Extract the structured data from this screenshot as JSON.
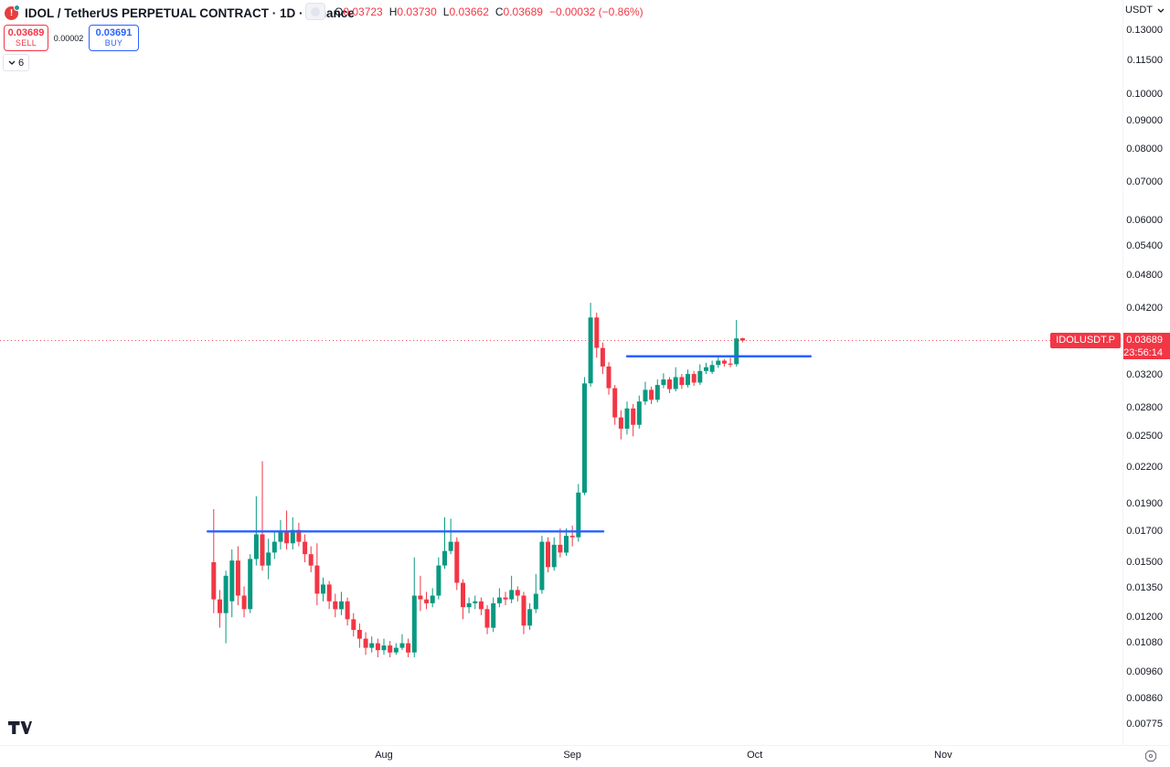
{
  "header": {
    "symbol_title": "IDOL / TetherUS PERPETUAL CONTRACT · 1D · Binance",
    "ohlc": {
      "o_label": "O",
      "o": "0.03723",
      "h_label": "H",
      "h": "0.03730",
      "l_label": "L",
      "l": "0.03662",
      "c_label": "C",
      "c": "0.03689",
      "change": "−0.00032 (−0.86%)"
    },
    "sell": {
      "price": "0.03689",
      "label": "SELL"
    },
    "spread": "0.00002",
    "buy": {
      "price": "0.03691",
      "label": "BUY"
    },
    "object_tree_count": "6"
  },
  "price_scale": {
    "currency": "USDT",
    "ticks": [
      "0.13000",
      "0.11500",
      "0.10000",
      "0.09000",
      "0.08000",
      "0.07000",
      "0.06000",
      "0.05400",
      "0.04800",
      "0.04200",
      "0.03200",
      "0.02800",
      "0.02500",
      "0.02200",
      "0.01900",
      "0.01700",
      "0.01500",
      "0.01350",
      "0.01200",
      "0.01080",
      "0.00960",
      "0.00860",
      "0.00775"
    ]
  },
  "time_axis": {
    "months": [
      {
        "label": "Aug",
        "day": 28
      },
      {
        "label": "Sep",
        "day": 59
      },
      {
        "label": "Oct",
        "day": 89
      },
      {
        "label": "Nov",
        "day": 120
      }
    ]
  },
  "price_label": {
    "symbol": "IDOLUSDT.P",
    "price": "0.03689",
    "countdown": "23:56:14"
  },
  "colors": {
    "up": "#089981",
    "down": "#f23645",
    "trendline": "#2962ff",
    "text": "#131722"
  },
  "chart_data": {
    "type": "candlestick",
    "symbol": "IDOLUSDT.P",
    "exchange": "Binance",
    "interval": "1D",
    "scale": "log",
    "current_price": 0.03689,
    "ylim": [
      0.0072,
      0.14
    ],
    "candles_format": [
      "date",
      "open",
      "high",
      "low",
      "close"
    ],
    "candles": [
      [
        "Jul 4",
        0.015,
        0.0186,
        0.0122,
        0.0129
      ],
      [
        "Jul 5",
        0.0129,
        0.0134,
        0.0115,
        0.0122
      ],
      [
        "Jul 6",
        0.0122,
        0.0145,
        0.0108,
        0.0142
      ],
      [
        "Jul 7",
        0.0128,
        0.0158,
        0.012,
        0.0151
      ],
      [
        "Jul 8",
        0.0151,
        0.016,
        0.0126,
        0.0131
      ],
      [
        "Jul 9",
        0.0131,
        0.0136,
        0.012,
        0.0124
      ],
      [
        "Jul 10",
        0.0124,
        0.0155,
        0.0122,
        0.0152
      ],
      [
        "Jul 11",
        0.0152,
        0.0196,
        0.0148,
        0.0168
      ],
      [
        "Jul 12",
        0.0168,
        0.0226,
        0.0145,
        0.0148
      ],
      [
        "Jul 13",
        0.0148,
        0.0165,
        0.014,
        0.0156
      ],
      [
        "Jul 14",
        0.0156,
        0.017,
        0.0152,
        0.0163
      ],
      [
        "Jul 15",
        0.0163,
        0.0178,
        0.0158,
        0.017
      ],
      [
        "Jul 16",
        0.017,
        0.0185,
        0.0158,
        0.0162
      ],
      [
        "Jul 17",
        0.0162,
        0.018,
        0.0158,
        0.0171
      ],
      [
        "Jul 18",
        0.0171,
        0.0176,
        0.016,
        0.0163
      ],
      [
        "Jul 19",
        0.0163,
        0.0168,
        0.015,
        0.0155
      ],
      [
        "Jul 20",
        0.0155,
        0.016,
        0.0144,
        0.0148
      ],
      [
        "Jul 21",
        0.0148,
        0.0162,
        0.0126,
        0.0132
      ],
      [
        "Jul 22",
        0.0132,
        0.0141,
        0.0128,
        0.0137
      ],
      [
        "Jul 23",
        0.0137,
        0.0139,
        0.0124,
        0.0128
      ],
      [
        "Jul 24",
        0.0128,
        0.0132,
        0.012,
        0.0124
      ],
      [
        "Jul 25",
        0.0124,
        0.0133,
        0.0121,
        0.0128
      ],
      [
        "Jul 26",
        0.0128,
        0.013,
        0.0116,
        0.0119
      ],
      [
        "Jul 27",
        0.0119,
        0.0122,
        0.0111,
        0.0114
      ],
      [
        "Jul 28",
        0.0114,
        0.0117,
        0.0106,
        0.011
      ],
      [
        "Jul 29",
        0.011,
        0.0113,
        0.0103,
        0.0106
      ],
      [
        "Jul 30",
        0.0106,
        0.0111,
        0.0104,
        0.0108
      ],
      [
        "Jul 31",
        0.0108,
        0.011,
        0.0102,
        0.0105
      ],
      [
        "Aug 1",
        0.0105,
        0.011,
        0.0103,
        0.0107
      ],
      [
        "Aug 2",
        0.0107,
        0.0109,
        0.0102,
        0.0104
      ],
      [
        "Aug 3",
        0.0104,
        0.0108,
        0.0103,
        0.0106
      ],
      [
        "Aug 4",
        0.0106,
        0.0112,
        0.0105,
        0.0108
      ],
      [
        "Aug 5",
        0.0108,
        0.011,
        0.0102,
        0.0104
      ],
      [
        "Aug 6",
        0.0104,
        0.0153,
        0.0102,
        0.0131
      ],
      [
        "Aug 7",
        0.0131,
        0.0142,
        0.0123,
        0.0129
      ],
      [
        "Aug 8",
        0.0129,
        0.0133,
        0.0124,
        0.0127
      ],
      [
        "Aug 9",
        0.0127,
        0.0135,
        0.0125,
        0.0131
      ],
      [
        "Aug 10",
        0.0131,
        0.0153,
        0.0129,
        0.0148
      ],
      [
        "Aug 11",
        0.0148,
        0.018,
        0.0146,
        0.0157
      ],
      [
        "Aug 12",
        0.0157,
        0.0179,
        0.0155,
        0.0163
      ],
      [
        "Aug 13",
        0.0163,
        0.0166,
        0.0134,
        0.0138
      ],
      [
        "Aug 14",
        0.0138,
        0.014,
        0.0119,
        0.0125
      ],
      [
        "Aug 15",
        0.0125,
        0.013,
        0.0122,
        0.0127
      ],
      [
        "Aug 16",
        0.0127,
        0.0131,
        0.0124,
        0.0128
      ],
      [
        "Aug 17",
        0.0128,
        0.013,
        0.0121,
        0.0124
      ],
      [
        "Aug 18",
        0.0124,
        0.0126,
        0.0112,
        0.0115
      ],
      [
        "Aug 19",
        0.0115,
        0.013,
        0.0113,
        0.0127
      ],
      [
        "Aug 20",
        0.0127,
        0.0135,
        0.0125,
        0.013
      ],
      [
        "Aug 21",
        0.013,
        0.0133,
        0.0126,
        0.0129
      ],
      [
        "Aug 22",
        0.0129,
        0.0142,
        0.0127,
        0.0134
      ],
      [
        "Aug 23",
        0.0134,
        0.0136,
        0.0128,
        0.0131
      ],
      [
        "Aug 24",
        0.0131,
        0.0133,
        0.0112,
        0.0116
      ],
      [
        "Aug 25",
        0.0116,
        0.0127,
        0.0114,
        0.0124
      ],
      [
        "Aug 26",
        0.0124,
        0.0143,
        0.0122,
        0.0132
      ],
      [
        "Aug 27",
        0.0134,
        0.0167,
        0.0132,
        0.0163
      ],
      [
        "Aug 28",
        0.0163,
        0.0166,
        0.0144,
        0.0147
      ],
      [
        "Aug 29",
        0.0147,
        0.0166,
        0.0145,
        0.0161
      ],
      [
        "Aug 30",
        0.0161,
        0.0172,
        0.0153,
        0.0156
      ],
      [
        "Aug 31",
        0.0156,
        0.0172,
        0.0154,
        0.0167
      ],
      [
        "Sep 1",
        0.0167,
        0.0174,
        0.016,
        0.0166
      ],
      [
        "Sep 2",
        0.0166,
        0.0206,
        0.0163,
        0.0199
      ],
      [
        "Sep 3",
        0.0199,
        0.0318,
        0.0197,
        0.031
      ],
      [
        "Sep 4",
        0.031,
        0.043,
        0.0306,
        0.0405
      ],
      [
        "Sep 5",
        0.0405,
        0.0413,
        0.0344,
        0.0358
      ],
      [
        "Sep 6",
        0.0358,
        0.0366,
        0.0322,
        0.0332
      ],
      [
        "Sep 7",
        0.0332,
        0.0338,
        0.0296,
        0.0304
      ],
      [
        "Sep 8",
        0.0304,
        0.0308,
        0.0262,
        0.027
      ],
      [
        "Sep 9",
        0.027,
        0.0278,
        0.0247,
        0.0258
      ],
      [
        "Sep 10",
        0.0258,
        0.0288,
        0.0252,
        0.028
      ],
      [
        "Sep 11",
        0.028,
        0.0285,
        0.025,
        0.0262
      ],
      [
        "Sep 12",
        0.0262,
        0.0295,
        0.0258,
        0.0288
      ],
      [
        "Sep 13",
        0.0288,
        0.0312,
        0.0284,
        0.0302
      ],
      [
        "Sep 14",
        0.0302,
        0.0306,
        0.0285,
        0.029
      ],
      [
        "Sep 15",
        0.029,
        0.0315,
        0.0287,
        0.0308
      ],
      [
        "Sep 16",
        0.0308,
        0.0323,
        0.0304,
        0.0315
      ],
      [
        "Sep 17",
        0.0315,
        0.0318,
        0.0298,
        0.0303
      ],
      [
        "Sep 18",
        0.0303,
        0.0331,
        0.03,
        0.0318
      ],
      [
        "Sep 19",
        0.0318,
        0.0322,
        0.0303,
        0.0308
      ],
      [
        "Sep 20",
        0.0308,
        0.0328,
        0.0305,
        0.0322
      ],
      [
        "Sep 21",
        0.0322,
        0.0326,
        0.0307,
        0.0311
      ],
      [
        "Sep 22",
        0.0311,
        0.0335,
        0.0308,
        0.0326
      ],
      [
        "Sep 23",
        0.0326,
        0.0337,
        0.0322,
        0.0331
      ],
      [
        "Sep 24",
        0.0325,
        0.034,
        0.0322,
        0.0334
      ],
      [
        "Sep 25",
        0.0334,
        0.0346,
        0.033,
        0.034
      ],
      [
        "Sep 26",
        0.034,
        0.0342,
        0.0332,
        0.0336
      ],
      [
        "Sep 27",
        0.0336,
        0.0344,
        0.0331,
        0.0335
      ],
      [
        "Sep 28",
        0.0335,
        0.0401,
        0.0332,
        0.0372
      ],
      [
        "Sep 29",
        0.03723,
        0.0373,
        0.03662,
        0.03689
      ]
    ],
    "trendlines": [
      {
        "price": 0.017,
        "from_day": -1.0,
        "to_day": 64.1
      },
      {
        "price": 0.0346,
        "from_day": 68.0,
        "to_day": 98.2
      }
    ]
  }
}
